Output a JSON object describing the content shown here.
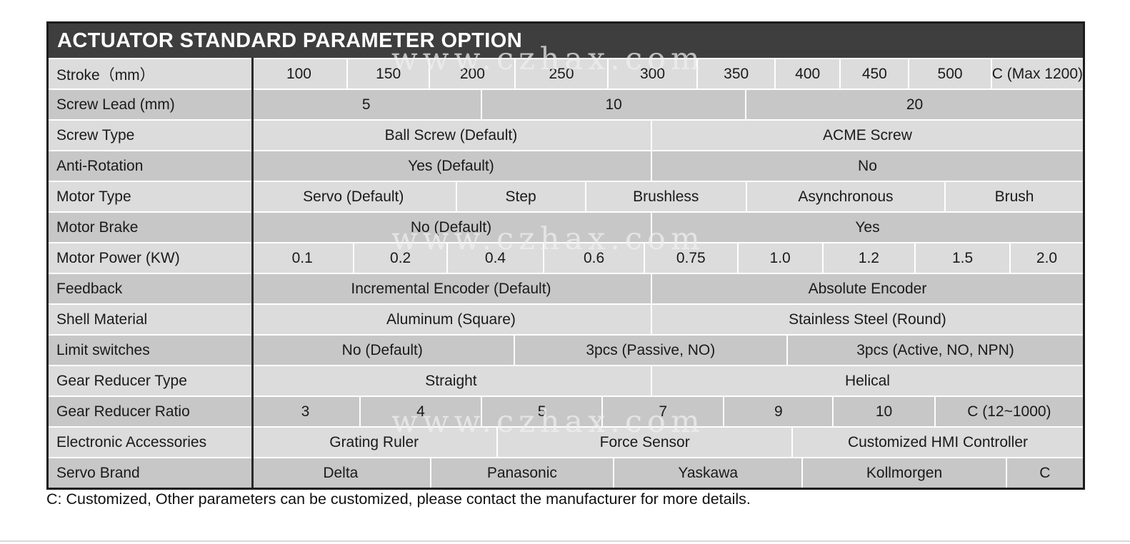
{
  "title": "ACTUATOR STANDARD PARAMETER OPTION",
  "watermark": "www.czhax.com",
  "footnote": "C: Customized, Other parameters can be customized, please contact the manufacturer for more details.",
  "colors": {
    "title_bar": "#3e3e3e",
    "row_light": "#dcdcdc",
    "row_dark": "#c7c7c7",
    "border": "#1c1c1c",
    "text": "#1a1a1a"
  },
  "table": {
    "rows": [
      {
        "label": "Stroke（mm）",
        "cells": [
          "100",
          "150",
          "200",
          "250",
          "300",
          "350",
          "400",
          "450",
          "500",
          "C (Max 1200)"
        ]
      },
      {
        "label": "Screw Lead (mm)",
        "cells": [
          "5",
          "10",
          "20"
        ]
      },
      {
        "label": "Screw Type",
        "cells": [
          "Ball Screw (Default)",
          "ACME Screw"
        ]
      },
      {
        "label": "Anti-Rotation",
        "cells": [
          "Yes (Default)",
          "No"
        ]
      },
      {
        "label": "Motor Type",
        "cells": [
          "Servo (Default)",
          "Step",
          "Brushless",
          "Asynchronous",
          "Brush"
        ]
      },
      {
        "label": "Motor Brake",
        "cells": [
          "No (Default)",
          "Yes"
        ]
      },
      {
        "label": "Motor Power (KW)",
        "cells": [
          "0.1",
          "0.2",
          "0.4",
          "0.6",
          "0.75",
          "1.0",
          "1.2",
          "1.5",
          "2.0"
        ]
      },
      {
        "label": "Feedback",
        "cells": [
          "Incremental Encoder (Default)",
          "Absolute Encoder"
        ]
      },
      {
        "label": "Shell Material",
        "cells": [
          "Aluminum (Square)",
          "Stainless Steel (Round)"
        ]
      },
      {
        "label": "Limit switches",
        "cells": [
          "No (Default)",
          "3pcs (Passive, NO)",
          "3pcs (Active, NO, NPN)"
        ]
      },
      {
        "label": "Gear Reducer Type",
        "cells": [
          "Straight",
          "Helical"
        ]
      },
      {
        "label": "Gear Reducer Ratio",
        "cells": [
          "3",
          "4",
          "5",
          "7",
          "9",
          "10",
          "C (12~1000)"
        ]
      },
      {
        "label": "Electronic Accessories",
        "cells": [
          "Grating Ruler",
          "Force Sensor",
          "Customized HMI Controller"
        ]
      },
      {
        "label": "Servo Brand",
        "cells": [
          "Delta",
          "Panasonic",
          "Yaskawa",
          "Kollmorgen",
          "C"
        ]
      }
    ]
  }
}
